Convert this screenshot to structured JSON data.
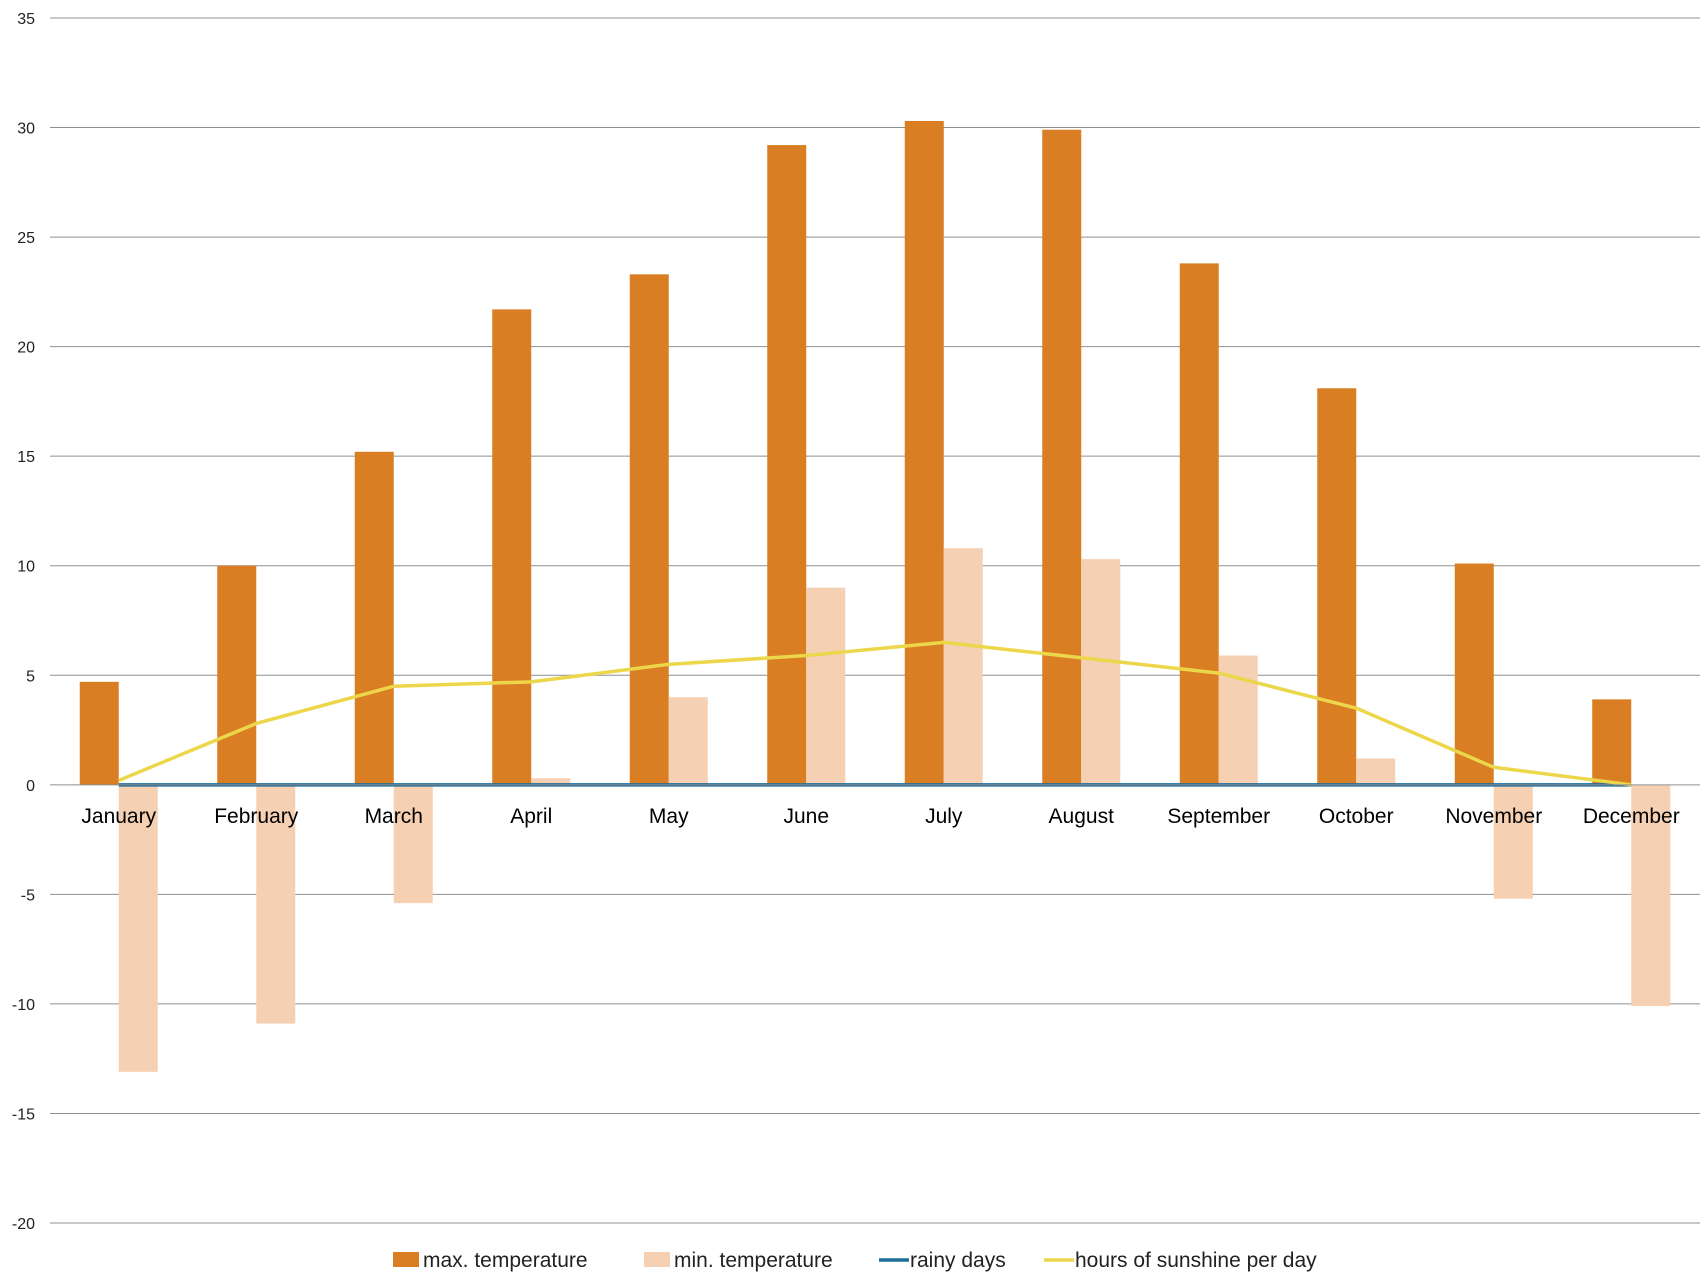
{
  "chart_data": {
    "type": "bar",
    "categories": [
      "January",
      "February",
      "March",
      "April",
      "May",
      "June",
      "July",
      "August",
      "September",
      "October",
      "November",
      "December"
    ],
    "series": [
      {
        "name": "max.  temperature",
        "kind": "bar",
        "color": "#d97e22",
        "values": [
          4.7,
          10.0,
          15.2,
          21.7,
          23.3,
          29.2,
          30.3,
          29.9,
          23.8,
          18.1,
          10.1,
          3.9
        ]
      },
      {
        "name": "min. temperature",
        "kind": "bar",
        "color": "#f5d0b3",
        "values": [
          -13.1,
          -10.9,
          -5.4,
          0.3,
          4.0,
          9.0,
          10.8,
          10.3,
          5.9,
          1.2,
          -5.2,
          -10.1
        ]
      },
      {
        "name": "rainy days",
        "kind": "line",
        "color": "#1f6e9c",
        "values": [
          0,
          0,
          0,
          0,
          0,
          0,
          0,
          0,
          0,
          0,
          0,
          0
        ]
      },
      {
        "name": "hours of sunshine per day",
        "kind": "line",
        "color": "#ecd64a",
        "values": [
          0.2,
          2.8,
          4.5,
          4.7,
          5.5,
          5.9,
          6.5,
          5.8,
          5.1,
          3.5,
          0.8,
          0.0
        ]
      }
    ],
    "yticks": [
      "35",
      "30",
      "25",
      "20",
      "15",
      "10",
      "5",
      "0",
      "-5",
      "-10",
      "-15",
      "-20"
    ],
    "ylim": [
      -20,
      35
    ],
    "grid": true,
    "legend_position": "bottom",
    "title": "",
    "xlabel": "",
    "ylabel": ""
  }
}
